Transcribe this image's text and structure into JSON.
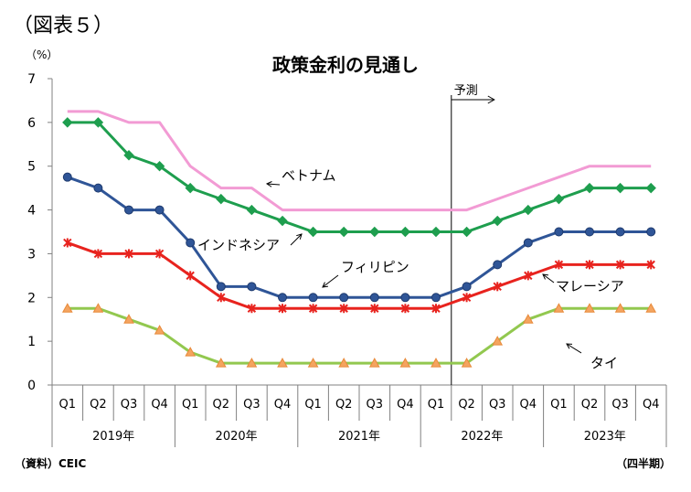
{
  "figure_label": "（図表５）",
  "source_note": "（資料）CEIC",
  "period_note": "（四半期）",
  "chart_data": {
    "type": "line",
    "title": "政策金利の見通し",
    "ylabel": "（%）",
    "ylim": [
      0,
      7
    ],
    "yticks": [
      "0",
      "1",
      "2",
      "3",
      "4",
      "5",
      "6",
      "7"
    ],
    "categories": [
      "Q1",
      "Q2",
      "Q3",
      "Q4",
      "Q1",
      "Q2",
      "Q3",
      "Q4",
      "Q1",
      "Q2",
      "Q3",
      "Q4",
      "Q1",
      "Q2",
      "Q3",
      "Q4",
      "Q1",
      "Q2",
      "Q3",
      "Q4"
    ],
    "years": [
      "2019年",
      "2020年",
      "2021年",
      "2022年",
      "2023年"
    ],
    "forecast_label": "予測",
    "grid": false,
    "series": [
      {
        "name": "ベトナム",
        "color": "#f29bd4",
        "marker": "none",
        "values": [
          6.25,
          6.25,
          6.0,
          6.0,
          5.0,
          4.5,
          4.5,
          4.0,
          4.0,
          4.0,
          4.0,
          4.0,
          4.0,
          4.0,
          4.25,
          4.5,
          4.75,
          5.0,
          5.0,
          5.0
        ]
      },
      {
        "name": "インドネシア",
        "color": "#1e9e4e",
        "marker": "diamond",
        "values": [
          6.0,
          6.0,
          5.25,
          5.0,
          4.5,
          4.25,
          4.0,
          3.75,
          3.5,
          3.5,
          3.5,
          3.5,
          3.5,
          3.5,
          3.75,
          4.0,
          4.25,
          4.5,
          4.5,
          4.5
        ]
      },
      {
        "name": "フィリピン",
        "color": "#2f5597",
        "marker": "circle",
        "values": [
          4.75,
          4.5,
          4.0,
          4.0,
          3.25,
          2.25,
          2.25,
          2.0,
          2.0,
          2.0,
          2.0,
          2.0,
          2.0,
          2.25,
          2.75,
          3.25,
          3.5,
          3.5,
          3.5,
          3.5
        ]
      },
      {
        "name": "マレーシア",
        "color": "#e8231e",
        "marker": "star",
        "values": [
          3.25,
          3.0,
          3.0,
          3.0,
          2.5,
          2.0,
          1.75,
          1.75,
          1.75,
          1.75,
          1.75,
          1.75,
          1.75,
          2.0,
          2.25,
          2.5,
          2.75,
          2.75,
          2.75,
          2.75
        ]
      },
      {
        "name": "タイ",
        "color": "#92c84f",
        "marker": "triangle",
        "values": [
          1.75,
          1.75,
          1.5,
          1.25,
          0.75,
          0.5,
          0.5,
          0.5,
          0.5,
          0.5,
          0.5,
          0.5,
          0.5,
          0.5,
          1.0,
          1.5,
          1.75,
          1.75,
          1.75,
          1.75
        ]
      }
    ]
  }
}
